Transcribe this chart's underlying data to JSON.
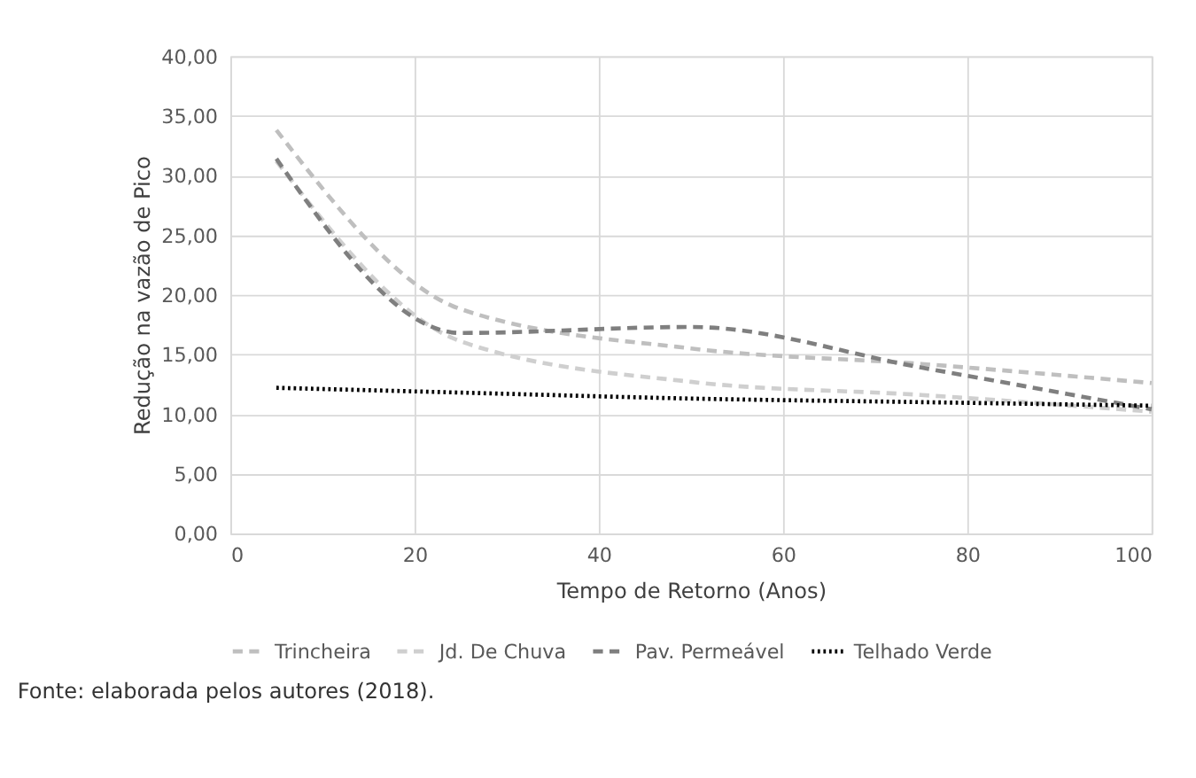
{
  "chart_data": {
    "type": "line",
    "xlabel": "Tempo de Retorno (Anos)",
    "ylabel": "Redução na vazão de Pico",
    "x": [
      5,
      25,
      50,
      75,
      100
    ],
    "series": [
      {
        "name": "Trincheira",
        "color": "#bfbfbf",
        "line_style": "dashed",
        "values": [
          33.8,
          18.8,
          15.5,
          14.2,
          12.6
        ]
      },
      {
        "name": "Jd. De Chuva",
        "color": "#cfcfcf",
        "line_style": "dashed",
        "values": [
          31.2,
          16.1,
          12.7,
          11.6,
          10.2
        ]
      },
      {
        "name": "Pav. Permeável",
        "color": "#7f7f7f",
        "line_style": "dashed",
        "values": [
          31.4,
          16.8,
          17.3,
          13.9,
          10.4
        ]
      },
      {
        "name": "Telhado Verde",
        "color": "#000000",
        "line_style": "dotted",
        "values": [
          12.2,
          11.8,
          11.3,
          11.0,
          10.7
        ]
      }
    ],
    "xlim": [
      0,
      100
    ],
    "xticks": [
      0,
      20,
      40,
      60,
      80,
      100
    ],
    "ylim": [
      0,
      40
    ],
    "yticks": [
      {
        "value": 0,
        "label": "0,00"
      },
      {
        "value": 5,
        "label": "5,00"
      },
      {
        "value": 10,
        "label": "10,00"
      },
      {
        "value": 15,
        "label": "15,00"
      },
      {
        "value": 20,
        "label": "20,00"
      },
      {
        "value": 25,
        "label": "25,00"
      },
      {
        "value": 30,
        "label": "30,00"
      },
      {
        "value": 35,
        "label": "35,00"
      },
      {
        "value": 40,
        "label": "40,00"
      }
    ],
    "grid": true,
    "legend": "bottom",
    "marker": "none",
    "annotations": [
      "Fonte: elaborada pelos autores (2018)."
    ]
  }
}
